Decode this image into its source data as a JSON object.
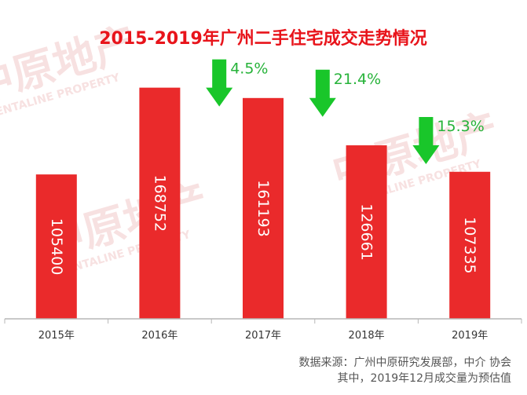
{
  "colors": {
    "title": "#e8141b",
    "bar": "#ea2a2b",
    "bar_label": "#ffffff",
    "arrow": "#19c62a",
    "change_text": "#27b33a",
    "axis": "#b7b7b7",
    "axis_text": "#333333",
    "watermark": "#f2c9c9"
  },
  "chart_data": {
    "type": "bar",
    "title": "2015-2019年广州二手住宅成交走势情况",
    "categories": [
      "2015年",
      "2016年",
      "2017年",
      "2018年",
      "2019年"
    ],
    "values": [
      105400,
      168752,
      161193,
      126661,
      107335
    ],
    "value_labels": [
      "105400",
      "168752",
      "161193",
      "126661",
      "107335"
    ],
    "ylim": [
      0,
      180000
    ],
    "changes": [
      {
        "label": "4.5%",
        "direction": "down",
        "between": [
          "2016年",
          "2017年"
        ]
      },
      {
        "label": "21.4%",
        "direction": "down",
        "between": [
          "2017年",
          "2018年"
        ]
      },
      {
        "label": "15.3%",
        "direction": "down",
        "between": [
          "2018年",
          "2019年"
        ]
      }
    ],
    "grid": false,
    "legend": "none"
  },
  "footer": {
    "source_line1": "数据来源：广州中原研究发展部，中介 协会",
    "source_line2": "其中，2019年12月成交量为预估值"
  },
  "watermark": {
    "text_cn": "中原地产",
    "text_en": "CENTALINE PROPERTY"
  }
}
